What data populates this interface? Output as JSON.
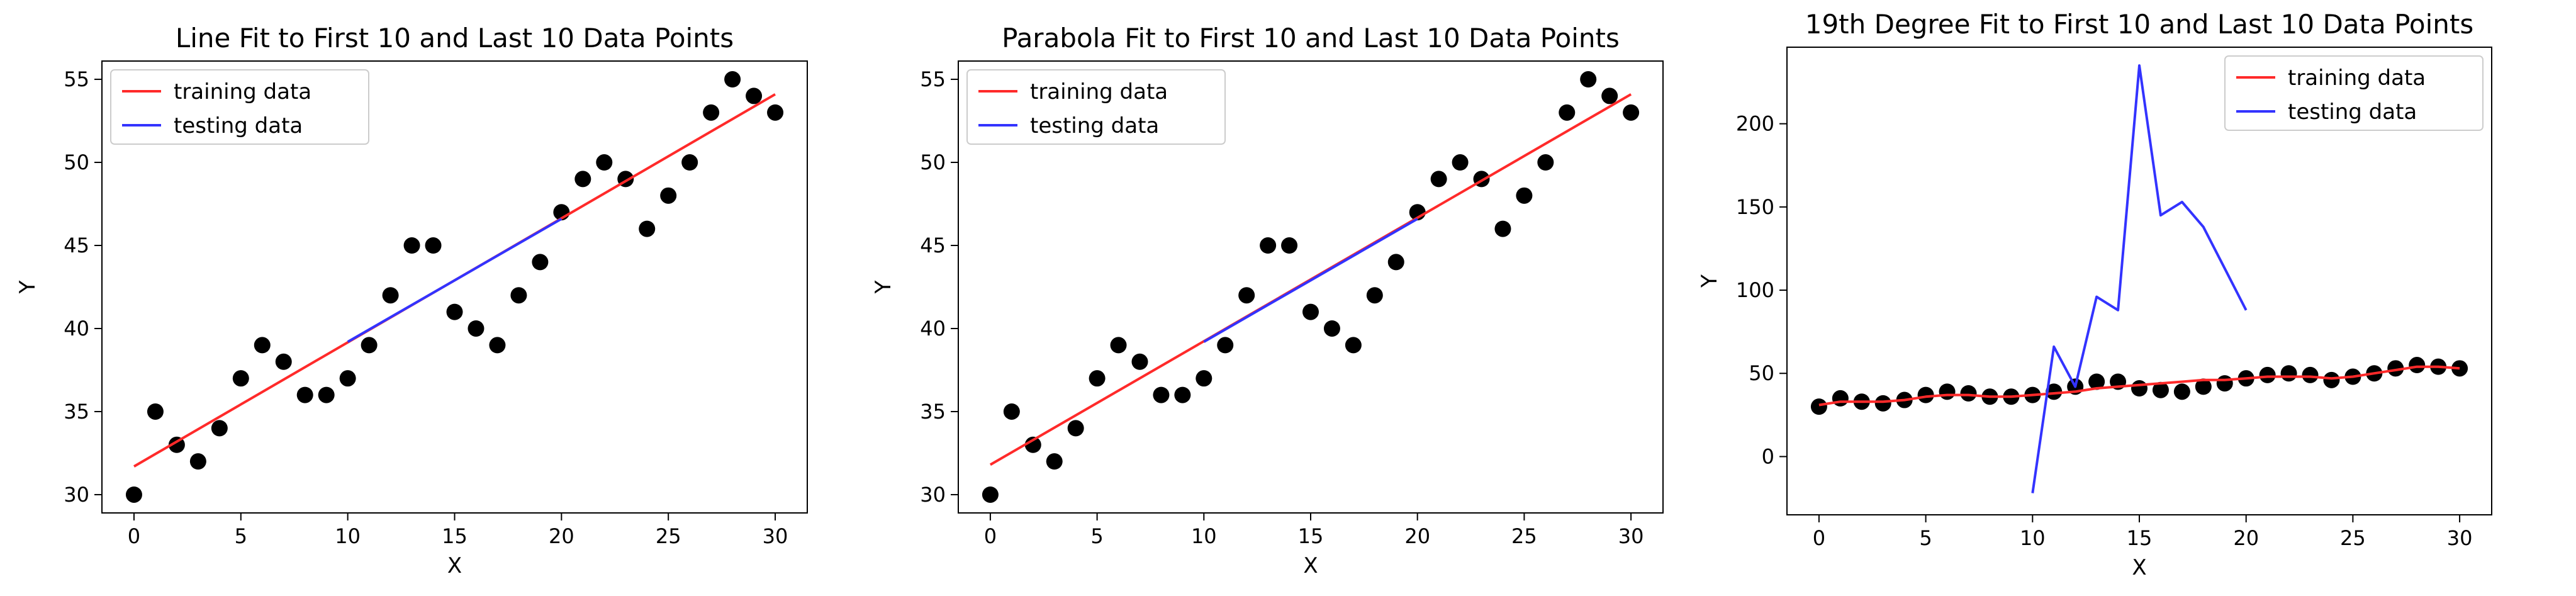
{
  "chart_data": [
    {
      "type": "scatter",
      "title": "Line Fit to First 10 and Last 10 Data Points",
      "xlabel": "X",
      "ylabel": "Y",
      "xlim": [
        -1.5,
        31.5
      ],
      "ylim": [
        28.9,
        56.1
      ],
      "xticks": [
        0,
        5,
        10,
        15,
        20,
        25,
        30
      ],
      "yticks": [
        30,
        35,
        40,
        45,
        50,
        55
      ],
      "grid": false,
      "legend_placement": "top-left",
      "points": {
        "x": [
          0,
          1,
          2,
          3,
          4,
          5,
          6,
          7,
          8,
          9,
          10,
          11,
          12,
          13,
          14,
          15,
          16,
          17,
          18,
          19,
          20,
          21,
          22,
          23,
          24,
          25,
          26,
          27,
          28,
          29,
          30
        ],
        "y": [
          30,
          35,
          33,
          32,
          34,
          37,
          39,
          38,
          36,
          36,
          37,
          39,
          42,
          45,
          45,
          41,
          40,
          39,
          42,
          44,
          47,
          49,
          50,
          49,
          46,
          48,
          50,
          53,
          55,
          54,
          53
        ],
        "color": "#000000"
      },
      "series": [
        {
          "name": "training data",
          "color": "#ff2a2a",
          "x": [
            0,
            30
          ],
          "y": [
            31.7,
            54.1
          ]
        },
        {
          "name": "testing data",
          "color": "#3333ff",
          "x": [
            10,
            20
          ],
          "y": [
            39.2,
            46.6
          ]
        }
      ]
    },
    {
      "type": "scatter",
      "title": "Parabola Fit to First 10 and Last 10 Data Points",
      "xlabel": "X",
      "ylabel": "Y",
      "xlim": [
        -1.5,
        31.5
      ],
      "ylim": [
        28.9,
        56.1
      ],
      "xticks": [
        0,
        5,
        10,
        15,
        20,
        25,
        30
      ],
      "yticks": [
        30,
        35,
        40,
        45,
        50,
        55
      ],
      "grid": false,
      "legend_placement": "top-left",
      "points": {
        "x": [
          0,
          1,
          2,
          3,
          4,
          5,
          6,
          7,
          8,
          9,
          10,
          11,
          12,
          13,
          14,
          15,
          16,
          17,
          18,
          19,
          20,
          21,
          22,
          23,
          24,
          25,
          26,
          27,
          28,
          29,
          30
        ],
        "y": [
          30,
          35,
          33,
          32,
          34,
          37,
          39,
          38,
          36,
          36,
          37,
          39,
          42,
          45,
          45,
          41,
          40,
          39,
          42,
          44,
          47,
          49,
          50,
          49,
          46,
          48,
          50,
          53,
          55,
          54,
          53
        ],
        "color": "#000000"
      },
      "series": [
        {
          "name": "training data",
          "color": "#ff2a2a",
          "x": [
            0,
            30
          ],
          "y": [
            31.8,
            54.1
          ]
        },
        {
          "name": "testing data",
          "color": "#3333ff",
          "x": [
            10,
            20
          ],
          "y": [
            39.2,
            46.6
          ]
        }
      ]
    },
    {
      "type": "scatter",
      "title": "19th Degree Fit to First 10 and Last 10 Data Points",
      "xlabel": "X",
      "ylabel": "Y",
      "xlim": [
        -1.5,
        31.5
      ],
      "ylim": [
        -35,
        246
      ],
      "xticks": [
        0,
        5,
        10,
        15,
        20,
        25,
        30
      ],
      "yticks": [
        0,
        50,
        100,
        150,
        200
      ],
      "grid": false,
      "legend_placement": "top-right",
      "points": {
        "x": [
          0,
          1,
          2,
          3,
          4,
          5,
          6,
          7,
          8,
          9,
          10,
          11,
          12,
          13,
          14,
          15,
          16,
          17,
          18,
          19,
          20,
          21,
          22,
          23,
          24,
          25,
          26,
          27,
          28,
          29,
          30
        ],
        "y": [
          30,
          35,
          33,
          32,
          34,
          37,
          39,
          38,
          36,
          36,
          37,
          39,
          42,
          45,
          45,
          41,
          40,
          39,
          42,
          44,
          47,
          49,
          50,
          49,
          46,
          48,
          50,
          53,
          55,
          54,
          53
        ],
        "color": "#000000"
      },
      "series": [
        {
          "name": "training data",
          "color": "#ff2a2a",
          "x": [
            0,
            1,
            2,
            3,
            4,
            5,
            6,
            7,
            8,
            9,
            10,
            11,
            12,
            13,
            14,
            15,
            16,
            17,
            18,
            19,
            20,
            21,
            22,
            23,
            24,
            25,
            26,
            27,
            28,
            29,
            30
          ],
          "y": [
            31,
            33,
            33,
            33,
            34,
            36,
            37,
            37,
            36,
            36,
            37,
            38,
            39,
            41,
            42,
            43,
            44,
            45,
            46,
            46,
            47,
            48,
            48,
            48,
            47,
            48,
            50,
            52,
            54,
            54,
            53
          ]
        },
        {
          "name": "testing data",
          "color": "#3333ff",
          "x": [
            10,
            11,
            12,
            13,
            14,
            15,
            16,
            17,
            18,
            19,
            20
          ],
          "y": [
            -22,
            66,
            42,
            96,
            88,
            235,
            145,
            153,
            138,
            113,
            88
          ]
        }
      ]
    }
  ]
}
